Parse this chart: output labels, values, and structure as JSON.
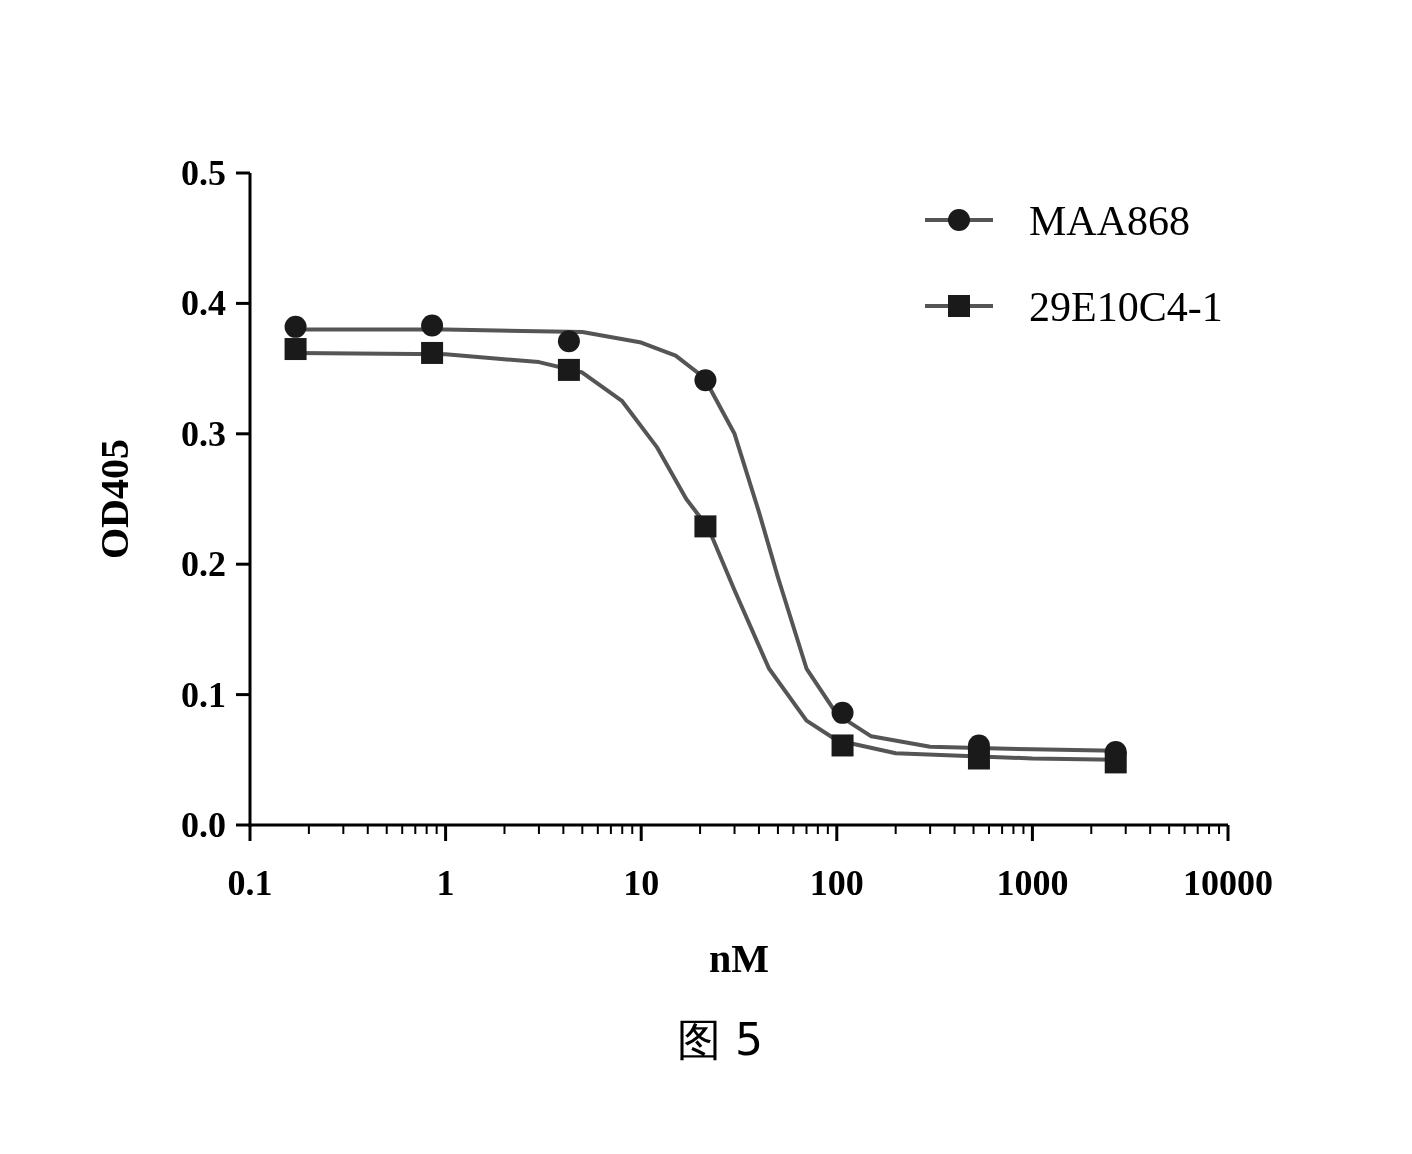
{
  "chart_data": {
    "type": "scatter",
    "xlabel": "nM",
    "ylabel": "OD405",
    "annotations": [
      "图 5"
    ],
    "log": "x",
    "legend": "top right",
    "xlim": [
      0.1,
      10000
    ],
    "ylim": [
      0,
      0.5
    ],
    "xticks": [
      0.1,
      1,
      10,
      100,
      1000,
      10000
    ],
    "yticks": [
      {
        "value": 0,
        "label": "0.0"
      },
      0.1,
      0.2,
      0.3,
      0.4,
      0.5
    ],
    "series": [
      {
        "name": "MAA868",
        "marker": "circle",
        "color": "#1a1a1a",
        "x": [
          0.171,
          0.853,
          4.27,
          21.3,
          107,
          533,
          2667
        ],
        "values": [
          0.382,
          0.383,
          0.371,
          0.341,
          0.086,
          0.061,
          0.056
        ]
      },
      {
        "name": "29E10C4-1",
        "marker": "square",
        "color": "#1a1a1a",
        "x": [
          0.171,
          0.853,
          4.27,
          21.3,
          107,
          533,
          2667
        ],
        "values": [
          0.365,
          0.362,
          0.349,
          0.229,
          0.061,
          0.051,
          0.048
        ]
      },
      {
        "type": "line",
        "marker": "none",
        "color": "#555555",
        "x": [
          0.171,
          1,
          5,
          10,
          15,
          21,
          30,
          40,
          50,
          70,
          100,
          150,
          300,
          1000,
          2667
        ],
        "values": [
          0.38,
          0.38,
          0.378,
          0.37,
          0.36,
          0.343,
          0.3,
          0.24,
          0.19,
          0.12,
          0.085,
          0.068,
          0.06,
          0.058,
          0.057
        ]
      },
      {
        "type": "line",
        "marker": "none",
        "color": "#555555",
        "x": [
          0.171,
          1,
          3,
          5,
          8,
          12,
          17,
          22,
          30,
          45,
          70,
          100,
          200,
          1000,
          2667
        ],
        "values": [
          0.362,
          0.361,
          0.355,
          0.347,
          0.325,
          0.29,
          0.25,
          0.228,
          0.18,
          0.12,
          0.08,
          0.065,
          0.055,
          0.051,
          0.05
        ]
      }
    ]
  }
}
